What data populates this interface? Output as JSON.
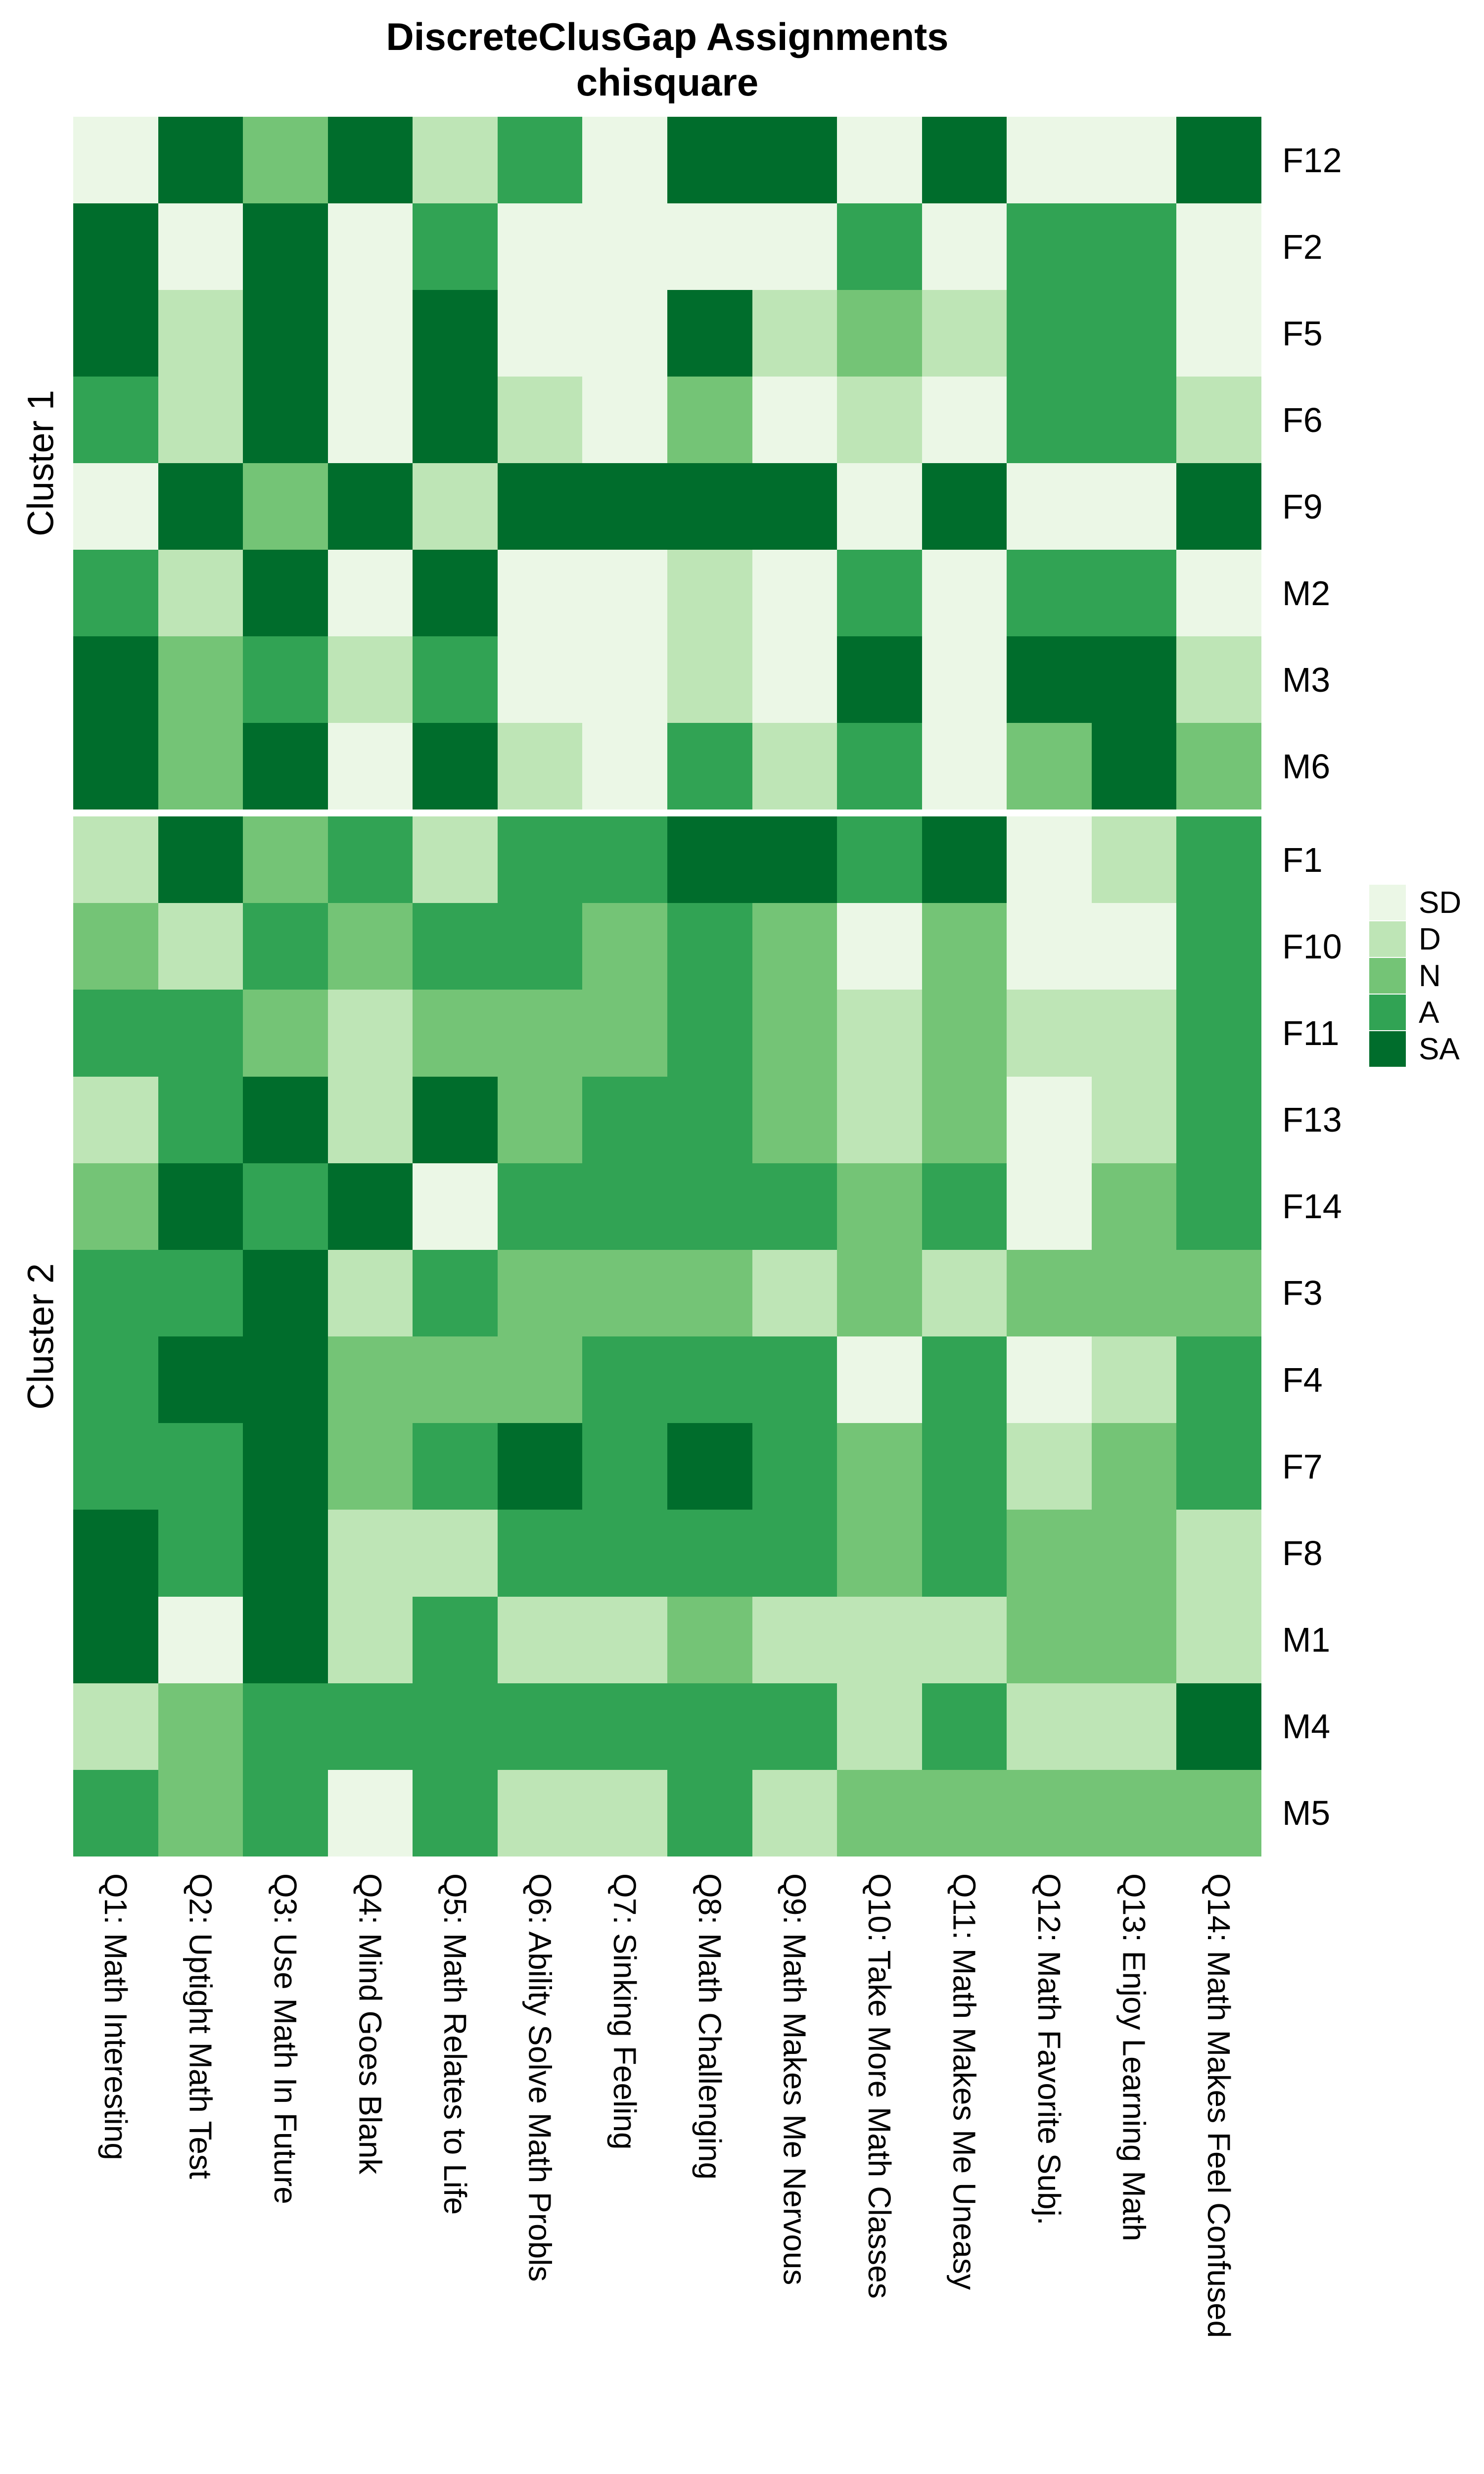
{
  "title": {
    "line1": "DiscreteClusGap Assignments",
    "line2": "chisquare"
  },
  "chart_data": {
    "type": "heatmap",
    "value_levels": [
      "SD",
      "D",
      "N",
      "A",
      "SA"
    ],
    "colors": {
      "SD": "#ebf7e6",
      "D": "#bee5b6",
      "N": "#74c476",
      "A": "#31a354",
      "SA": "#006d2c"
    },
    "legend_entries": [
      "SD",
      "D",
      "N",
      "A",
      "SA"
    ],
    "columns": [
      "Q1: Math Interesting",
      "Q2: Uptight Math Test",
      "Q3: Use Math In Future",
      "Q4: Mind Goes Blank",
      "Q5: Math Relates to Life",
      "Q6: Ability Solve Math Probls",
      "Q7: Sinking Feeling",
      "Q8: Math Challenging",
      "Q9: Math Makes Me Nervous",
      "Q10: Take More Math Classes",
      "Q11: Math Makes Me Uneasy",
      "Q12: Math Favorite Subj.",
      "Q13: Enjoy Learning Math",
      "Q14: Math Makes Feel Confused"
    ],
    "clusters": [
      {
        "name": "Cluster 1",
        "rows": [
          {
            "label": "F12",
            "values": [
              "SD",
              "SA",
              "N",
              "SA",
              "D",
              "A",
              "SD",
              "SA",
              "SA",
              "SD",
              "SA",
              "SD",
              "SD",
              "SA"
            ]
          },
          {
            "label": "F2",
            "values": [
              "SA",
              "SD",
              "SA",
              "SD",
              "A",
              "SD",
              "SD",
              "SD",
              "SD",
              "A",
              "SD",
              "A",
              "A",
              "SD"
            ]
          },
          {
            "label": "F5",
            "values": [
              "SA",
              "D",
              "SA",
              "SD",
              "SA",
              "SD",
              "SD",
              "SA",
              "D",
              "N",
              "D",
              "A",
              "A",
              "SD"
            ]
          },
          {
            "label": "F6",
            "values": [
              "A",
              "D",
              "SA",
              "SD",
              "SA",
              "D",
              "SD",
              "N",
              "SD",
              "D",
              "SD",
              "A",
              "A",
              "D"
            ]
          },
          {
            "label": "F9",
            "values": [
              "SD",
              "SA",
              "N",
              "SA",
              "D",
              "SA",
              "SA",
              "SA",
              "SA",
              "SD",
              "SA",
              "SD",
              "SD",
              "SA"
            ]
          },
          {
            "label": "M2",
            "values": [
              "A",
              "D",
              "SA",
              "SD",
              "SA",
              "SD",
              "SD",
              "D",
              "SD",
              "A",
              "SD",
              "A",
              "A",
              "SD"
            ]
          },
          {
            "label": "M3",
            "values": [
              "SA",
              "N",
              "A",
              "D",
              "A",
              "SD",
              "SD",
              "D",
              "SD",
              "SA",
              "SD",
              "SA",
              "SA",
              "D"
            ]
          },
          {
            "label": "M6",
            "values": [
              "SA",
              "N",
              "SA",
              "SD",
              "SA",
              "D",
              "SD",
              "A",
              "D",
              "A",
              "SD",
              "N",
              "SA",
              "N"
            ]
          }
        ]
      },
      {
        "name": "Cluster 2",
        "rows": [
          {
            "label": "F1",
            "values": [
              "D",
              "SA",
              "N",
              "A",
              "D",
              "A",
              "A",
              "SA",
              "SA",
              "A",
              "SA",
              "SD",
              "D",
              "A"
            ]
          },
          {
            "label": "F10",
            "values": [
              "N",
              "D",
              "A",
              "N",
              "A",
              "A",
              "N",
              "A",
              "N",
              "SD",
              "N",
              "SD",
              "SD",
              "A"
            ]
          },
          {
            "label": "F11",
            "values": [
              "A",
              "A",
              "N",
              "D",
              "N",
              "N",
              "N",
              "A",
              "N",
              "D",
              "N",
              "D",
              "D",
              "A"
            ]
          },
          {
            "label": "F13",
            "values": [
              "D",
              "A",
              "SA",
              "D",
              "SA",
              "N",
              "A",
              "A",
              "N",
              "D",
              "N",
              "SD",
              "D",
              "A"
            ]
          },
          {
            "label": "F14",
            "values": [
              "N",
              "SA",
              "A",
              "SA",
              "SD",
              "A",
              "A",
              "A",
              "A",
              "N",
              "A",
              "SD",
              "N",
              "A"
            ]
          },
          {
            "label": "F3",
            "values": [
              "A",
              "A",
              "SA",
              "D",
              "A",
              "N",
              "N",
              "N",
              "D",
              "N",
              "D",
              "N",
              "N",
              "N"
            ]
          },
          {
            "label": "F4",
            "values": [
              "A",
              "SA",
              "SA",
              "N",
              "N",
              "N",
              "A",
              "A",
              "A",
              "SD",
              "A",
              "SD",
              "D",
              "A"
            ]
          },
          {
            "label": "F7",
            "values": [
              "A",
              "A",
              "SA",
              "N",
              "A",
              "SA",
              "A",
              "SA",
              "A",
              "N",
              "A",
              "D",
              "N",
              "A"
            ]
          },
          {
            "label": "F8",
            "values": [
              "SA",
              "A",
              "SA",
              "D",
              "D",
              "A",
              "A",
              "A",
              "A",
              "N",
              "A",
              "N",
              "N",
              "D"
            ]
          },
          {
            "label": "M1",
            "values": [
              "SA",
              "SD",
              "SA",
              "D",
              "A",
              "D",
              "D",
              "N",
              "D",
              "D",
              "D",
              "N",
              "N",
              "D"
            ]
          },
          {
            "label": "M4",
            "values": [
              "D",
              "N",
              "A",
              "A",
              "A",
              "A",
              "A",
              "A",
              "A",
              "D",
              "A",
              "D",
              "D",
              "SA"
            ]
          },
          {
            "label": "M5",
            "values": [
              "A",
              "N",
              "A",
              "SD",
              "A",
              "D",
              "D",
              "A",
              "D",
              "N",
              "N",
              "N",
              "N",
              "N"
            ]
          }
        ]
      }
    ]
  }
}
